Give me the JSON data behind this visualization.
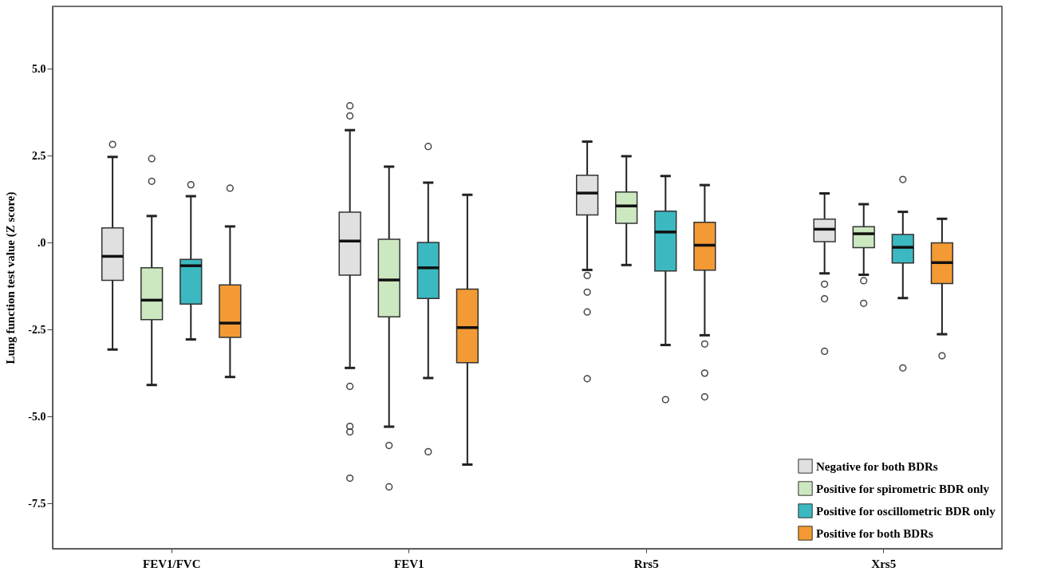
{
  "chart_data": {
    "type": "box",
    "ylabel": "Lung function test value (Z score)",
    "categories": [
      "FEV1/FVC",
      "FEV1",
      "Rrs5",
      "Xrs5"
    ],
    "ylim": [
      -8.8,
      6.8
    ],
    "yticks": [
      {
        "value": -7.5,
        "label": "-7.5"
      },
      {
        "value": -5,
        "label": "-5.0"
      },
      {
        "value": -2.5,
        "label": "-2.5"
      },
      {
        "value": 0,
        "label": ".0"
      },
      {
        "value": 2.5,
        "label": "2.5"
      },
      {
        "value": 5,
        "label": "5.0"
      }
    ],
    "grid": false,
    "legend": "bottom right",
    "series": [
      {
        "name": "Negative for both BDRs",
        "color": "#e0e0e0",
        "boxes": [
          {
            "low": -3.07,
            "q1": -1.08,
            "median": -0.39,
            "q3": 0.43,
            "high": 2.47,
            "outliers": [
              2.83
            ]
          },
          {
            "low": -3.6,
            "q1": -0.93,
            "median": 0.05,
            "q3": 0.88,
            "high": 3.24,
            "outliers": [
              3.94,
              3.65,
              -4.13,
              -5.28,
              -5.44,
              -6.77
            ]
          },
          {
            "low": -0.78,
            "q1": 0.8,
            "median": 1.43,
            "q3": 1.94,
            "high": 2.91,
            "outliers": [
              -0.94,
              -1.42,
              -1.99,
              -3.91
            ]
          },
          {
            "low": -0.88,
            "q1": 0.03,
            "median": 0.39,
            "q3": 0.68,
            "high": 1.42,
            "outliers": [
              -1.19,
              -1.61,
              -3.12
            ]
          }
        ]
      },
      {
        "name": "Positive for spirometric BDR only",
        "color": "#cce8c0",
        "boxes": [
          {
            "low": -4.09,
            "q1": -2.21,
            "median": -1.65,
            "q3": -0.72,
            "high": 0.77,
            "outliers": [
              2.42,
              1.77
            ]
          },
          {
            "low": -5.29,
            "q1": -2.13,
            "median": -1.07,
            "q3": 0.1,
            "high": 2.19,
            "outliers": [
              -5.83,
              -7.02
            ]
          },
          {
            "low": -0.64,
            "q1": 0.56,
            "median": 1.06,
            "q3": 1.46,
            "high": 2.49
          },
          {
            "low": -0.92,
            "q1": -0.14,
            "median": 0.26,
            "q3": 0.46,
            "high": 1.11,
            "outliers": [
              -1.09,
              -1.74
            ]
          }
        ]
      },
      {
        "name": "Positive for oscillometric BDR only",
        "color": "#3cb8c0",
        "boxes": [
          {
            "low": -2.78,
            "q1": -1.76,
            "median": -0.66,
            "q3": -0.48,
            "high": 1.34,
            "outliers": [
              1.67
            ]
          },
          {
            "low": -3.89,
            "q1": -1.6,
            "median": -0.72,
            "q3": 0.01,
            "high": 1.73,
            "outliers": [
              2.77,
              -6.01
            ]
          },
          {
            "low": -2.94,
            "q1": -0.81,
            "median": 0.31,
            "q3": 0.91,
            "high": 1.92,
            "outliers": [
              -4.51
            ]
          },
          {
            "low": -1.59,
            "q1": -0.58,
            "median": -0.13,
            "q3": 0.24,
            "high": 0.89,
            "outliers": [
              1.82,
              -3.6
            ]
          }
        ]
      },
      {
        "name": "Positive for both BDRs",
        "color": "#f39a34",
        "boxes": [
          {
            "low": -3.86,
            "q1": -2.72,
            "median": -2.31,
            "q3": -1.21,
            "high": 0.47,
            "outliers": [
              1.57
            ]
          },
          {
            "low": -6.38,
            "q1": -3.45,
            "median": -2.44,
            "q3": -1.33,
            "high": 1.38
          },
          {
            "low": -2.66,
            "q1": -0.79,
            "median": -0.07,
            "q3": 0.59,
            "high": 1.66,
            "outliers": [
              -2.91,
              -3.75,
              -4.43
            ]
          },
          {
            "low": -2.63,
            "q1": -1.17,
            "median": -0.57,
            "q3": 0.0,
            "high": 0.69,
            "outliers": [
              -3.25
            ]
          }
        ]
      }
    ]
  }
}
